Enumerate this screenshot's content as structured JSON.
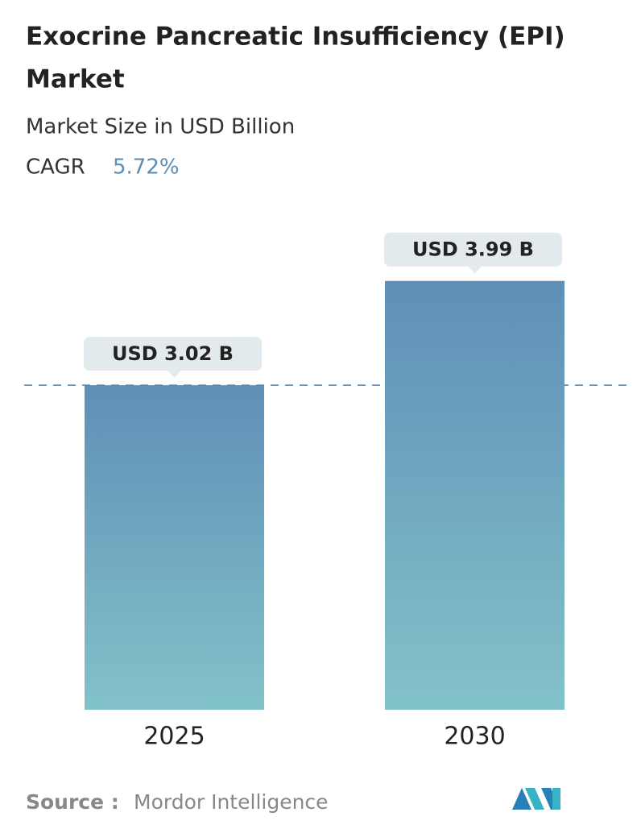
{
  "chart_data": {
    "type": "bar",
    "title": [
      "Exocrine Pancreatic Insufficiency (EPI)",
      "Market"
    ],
    "subtitle": "Market Size in USD Billion",
    "cagr_label": "CAGR",
    "cagr_value": "5.72%",
    "categories": [
      "2025",
      "2030"
    ],
    "values": [
      3.02,
      3.99
    ],
    "value_labels": [
      "USD 3.02 B",
      "USD 3.99 B"
    ],
    "source_label": "Source :",
    "source": "Mordor Intelligence"
  }
}
